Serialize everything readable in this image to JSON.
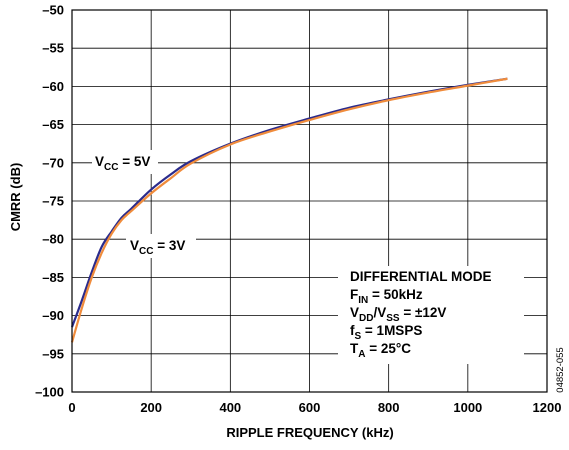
{
  "chart_data": {
    "type": "line",
    "xlabel": "RIPPLE FREQUENCY (kHz)",
    "ylabel": "CMRR (dB)",
    "xlim": [
      0,
      1200
    ],
    "ylim": [
      -100,
      -50
    ],
    "x_ticks": [
      0,
      200,
      400,
      600,
      800,
      1000,
      1200
    ],
    "y_ticks": [
      -50,
      -55,
      -60,
      -65,
      -70,
      -75,
      -80,
      -85,
      -90,
      -95,
      -100
    ],
    "x_tick_labels": [
      "0",
      "200",
      "400",
      "600",
      "800",
      "1000",
      "1200"
    ],
    "y_tick_labels": [
      "–50",
      "–55",
      "–60",
      "–65",
      "–70",
      "–75",
      "–80",
      "–85",
      "–90",
      "–95",
      "–100"
    ],
    "grid": true,
    "series": [
      {
        "name": "VCC = 5V",
        "color": "#2b2b8c",
        "x": [
          0,
          25,
          50,
          75,
          100,
          125,
          150,
          200,
          250,
          300,
          400,
          500,
          600,
          700,
          800,
          900,
          1000,
          1100
        ],
        "y": [
          -91.5,
          -88,
          -84.3,
          -81,
          -79,
          -77.2,
          -76,
          -73.5,
          -71.5,
          -69.8,
          -67.5,
          -65.7,
          -64.2,
          -62.8,
          -61.7,
          -60.7,
          -59.8,
          -59
        ]
      },
      {
        "name": "VCC = 3V",
        "color": "#f08c3c",
        "x": [
          0,
          25,
          50,
          75,
          100,
          125,
          150,
          200,
          250,
          300,
          400,
          500,
          600,
          700,
          800,
          900,
          1000,
          1100
        ],
        "y": [
          -93.5,
          -89,
          -85,
          -81.8,
          -79.3,
          -77.5,
          -76.3,
          -74,
          -72,
          -70.1,
          -67.6,
          -65.9,
          -64.4,
          -63,
          -61.8,
          -60.8,
          -59.9,
          -59
        ]
      }
    ],
    "annotations": {
      "vcc5": {
        "main": "V",
        "sub": "CC",
        "rest": " = 5V"
      },
      "vcc3": {
        "main": "V",
        "sub": "CC",
        "rest": " = 3V"
      },
      "conditions": {
        "line1": "DIFFERENTIAL MODE",
        "line2": {
          "main": "F",
          "sub": "IN",
          "rest": " = 50kHz"
        },
        "line3": {
          "a": "V",
          "a_sub": "DD",
          "b": "/V",
          "b_sub": "SS",
          "rest": " = ±12V"
        },
        "line4": {
          "main": "f",
          "sub": "S",
          "rest": " = 1MSPS"
        },
        "line5": {
          "main": "T",
          "sub": "A",
          "rest": " = 25°C"
        }
      }
    },
    "figure_id": "04852-055"
  }
}
